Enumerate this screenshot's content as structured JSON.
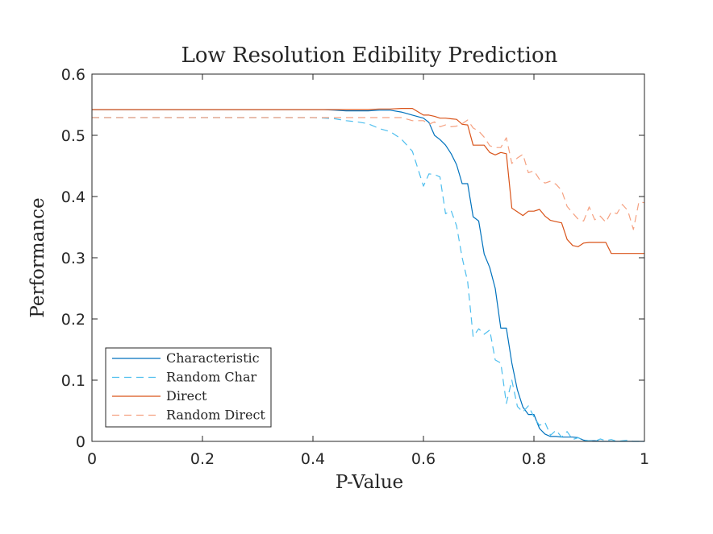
{
  "chart_data": {
    "type": "line",
    "title": "Low Resolution Edibility Prediction",
    "xlabel": "P-Value",
    "ylabel": "Performance",
    "xlim": [
      0,
      1
    ],
    "ylim": [
      0,
      0.6
    ],
    "xticks": [
      0,
      0.2,
      0.4,
      0.6,
      0.8,
      1
    ],
    "xtick_labels": [
      "0",
      "0.2",
      "0.4",
      "0.6",
      "0.8",
      "1"
    ],
    "yticks": [
      0,
      0.1,
      0.2,
      0.3,
      0.4,
      0.5,
      0.6
    ],
    "ytick_labels": [
      "0",
      "0.1",
      "0.2",
      "0.3",
      "0.4",
      "0.5",
      "0.6"
    ],
    "grid": false,
    "legend_position": "bottom-left",
    "x": [
      0,
      0.1,
      0.2,
      0.3,
      0.4,
      0.42,
      0.44,
      0.46,
      0.48,
      0.5,
      0.52,
      0.54,
      0.56,
      0.58,
      0.6,
      0.61,
      0.62,
      0.63,
      0.64,
      0.65,
      0.66,
      0.67,
      0.68,
      0.69,
      0.7,
      0.71,
      0.72,
      0.73,
      0.74,
      0.75,
      0.76,
      0.77,
      0.78,
      0.79,
      0.8,
      0.81,
      0.82,
      0.83,
      0.84,
      0.85,
      0.86,
      0.87,
      0.88,
      0.89,
      0.9,
      0.91,
      0.92,
      0.93,
      0.94,
      0.95,
      0.96,
      0.97,
      0.98,
      0.99,
      1.0
    ],
    "series": [
      {
        "name": "Characteristic",
        "color": "#0072BD",
        "dash": "solid",
        "values": [
          0.542,
          0.542,
          0.542,
          0.542,
          0.542,
          0.542,
          0.541,
          0.54,
          0.54,
          0.54,
          0.541,
          0.541,
          0.538,
          0.533,
          0.528,
          0.521,
          0.5,
          0.493,
          0.484,
          0.47,
          0.452,
          0.421,
          0.421,
          0.367,
          0.36,
          0.306,
          0.284,
          0.25,
          0.185,
          0.185,
          0.128,
          0.084,
          0.056,
          0.044,
          0.044,
          0.021,
          0.012,
          0.008,
          0.008,
          0.007,
          0.007,
          0.007,
          0.006,
          0.002,
          0.001,
          0.001,
          0.0,
          0.0,
          0.0,
          0.0,
          0.0,
          0.0,
          0.0,
          0.0,
          0.0
        ]
      },
      {
        "name": "Random Char",
        "color": "#4DBEEE",
        "dash": "dashed",
        "values": [
          0.529,
          0.529,
          0.529,
          0.529,
          0.529,
          0.528,
          0.527,
          0.524,
          0.522,
          0.519,
          0.511,
          0.506,
          0.494,
          0.474,
          0.417,
          0.437,
          0.436,
          0.432,
          0.372,
          0.377,
          0.352,
          0.3,
          0.261,
          0.171,
          0.184,
          0.175,
          0.182,
          0.133,
          0.128,
          0.062,
          0.1,
          0.057,
          0.048,
          0.058,
          0.04,
          0.026,
          0.031,
          0.01,
          0.018,
          0.007,
          0.016,
          0.003,
          0.006,
          0.002,
          0.001,
          0.0,
          0.004,
          0.001,
          0.003,
          0.0,
          0.001,
          0.002,
          0.0,
          0.0,
          0.0
        ]
      },
      {
        "name": "Direct",
        "color": "#D95319",
        "dash": "solid",
        "values": [
          0.542,
          0.542,
          0.542,
          0.542,
          0.542,
          0.542,
          0.542,
          0.542,
          0.542,
          0.542,
          0.543,
          0.543,
          0.544,
          0.544,
          0.533,
          0.533,
          0.531,
          0.528,
          0.528,
          0.527,
          0.526,
          0.518,
          0.517,
          0.484,
          0.484,
          0.484,
          0.472,
          0.468,
          0.472,
          0.47,
          0.381,
          0.375,
          0.369,
          0.376,
          0.376,
          0.379,
          0.368,
          0.361,
          0.359,
          0.357,
          0.33,
          0.32,
          0.318,
          0.324,
          0.325,
          0.325,
          0.325,
          0.325,
          0.307,
          0.307,
          0.307,
          0.307,
          0.307,
          0.307,
          0.307
        ]
      },
      {
        "name": "Random Direct",
        "color": "#F5A181",
        "dash": "dashed",
        "values": [
          0.529,
          0.529,
          0.529,
          0.529,
          0.529,
          0.529,
          0.529,
          0.529,
          0.529,
          0.529,
          0.529,
          0.529,
          0.529,
          0.524,
          0.524,
          0.518,
          0.522,
          0.514,
          0.517,
          0.514,
          0.515,
          0.519,
          0.525,
          0.512,
          0.507,
          0.497,
          0.483,
          0.48,
          0.48,
          0.496,
          0.454,
          0.463,
          0.469,
          0.439,
          0.442,
          0.428,
          0.422,
          0.425,
          0.42,
          0.41,
          0.384,
          0.373,
          0.363,
          0.36,
          0.383,
          0.362,
          0.368,
          0.358,
          0.375,
          0.372,
          0.387,
          0.377,
          0.346,
          0.391,
          0.39
        ]
      }
    ]
  }
}
